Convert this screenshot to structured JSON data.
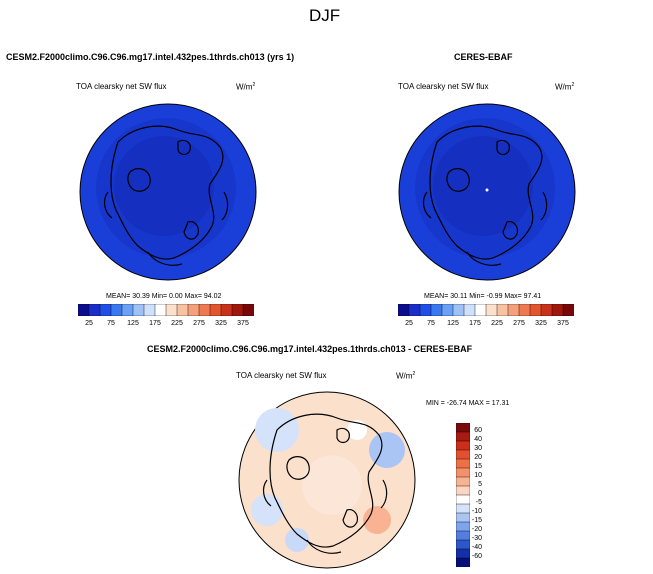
{
  "page_title": "DJF",
  "panels": {
    "model": {
      "case_title": "CESM2.F2000climo.C96.C96.mg17.intel.432pes.1thrds.ch013 (yrs 1)",
      "variable": "TOA clearsky net SW flux",
      "units_base": "W/m",
      "units_exp": "2",
      "stats": "MEAN=  30.39   Min=   0.00  Max=  94.02"
    },
    "obs": {
      "case_title": "CERES-EBAF",
      "variable": "TOA clearsky net SW flux",
      "units_base": "W/m",
      "units_exp": "2",
      "stats": "MEAN=  30.11   Min=  -0.99  Max=  97.41"
    },
    "diff": {
      "case_title": "CESM2.F2000climo.C96.C96.mg17.intel.432pes.1thrds.ch013 - CERES-EBAF",
      "variable": "TOA clearsky net SW flux",
      "units_base": "W/m",
      "units_exp": "2",
      "stats": "MIN = -26.74  MAX =  17.31"
    }
  },
  "colorbar_main": {
    "ticks": [
      "25",
      "75",
      "125",
      "175",
      "225",
      "275",
      "325",
      "375"
    ],
    "colors": [
      "#0a0e8c",
      "#1a2fc8",
      "#1f4fe6",
      "#3a78f0",
      "#6aa0f5",
      "#9ec2f8",
      "#cfe0fb",
      "#ffffff",
      "#fbe0cc",
      "#f8c2a2",
      "#f5a07a",
      "#ef7a52",
      "#e2552e",
      "#c8321a",
      "#a0180c",
      "#780808"
    ]
  },
  "colorbar_diff": {
    "ticks": [
      "60",
      "40",
      "30",
      "20",
      "15",
      "10",
      "5",
      "0",
      "-5",
      "-10",
      "-15",
      "-20",
      "-30",
      "-40",
      "-60"
    ],
    "colors": [
      "#7a0a0a",
      "#a81a12",
      "#cc2e1a",
      "#e4502e",
      "#ef7046",
      "#f59068",
      "#f9b392",
      "#fcd6c0",
      "#ffffff",
      "#d4e2fa",
      "#aac4f4",
      "#7ea4ec",
      "#527ee0",
      "#2c56cc",
      "#1430a8",
      "#060e78"
    ]
  },
  "map_colors": {
    "model_bg": "#1a3fd8",
    "model_inner": "#1530c0",
    "obs_bg": "#1a3fd8",
    "obs_inner": "#1530c0",
    "diff_bg": "#fbe0cc",
    "diff_blue": "#c8daf8"
  }
}
